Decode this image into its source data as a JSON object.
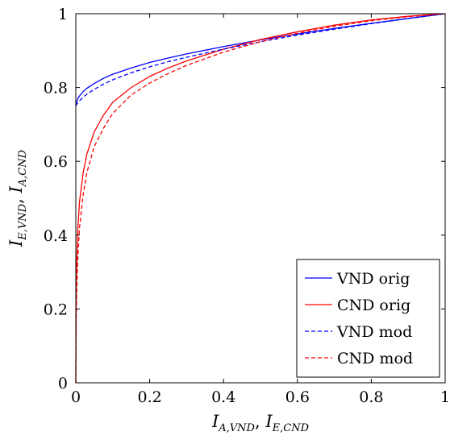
{
  "chart_data": {
    "type": "line",
    "xlabel": {
      "base": "I",
      "sub1": "A,VND",
      "sep": ", ",
      "sub2": "E,CND"
    },
    "ylabel": {
      "base": "I",
      "sub1": "E,VND",
      "sep": ", ",
      "sub2": "A,CND"
    },
    "xlim": [
      0,
      1
    ],
    "ylim": [
      0,
      1
    ],
    "x_ticks": [
      "0",
      "0.2",
      "0.4",
      "0.6",
      "0.8",
      "1"
    ],
    "y_ticks": [
      "0",
      "0.2",
      "0.4",
      "0.6",
      "0.8",
      "1"
    ],
    "grid": false,
    "legend_position": "bottom-right",
    "x": [
      0,
      0.001,
      0.002,
      0.005,
      0.01,
      0.02,
      0.03,
      0.05,
      0.075,
      0.1,
      0.15,
      0.2,
      0.25,
      0.3,
      0.4,
      0.5,
      0.6,
      0.7,
      0.8,
      0.9,
      1.0
    ],
    "series": [
      {
        "name": "VND orig",
        "color": "#0000ff",
        "dash": "solid",
        "values": [
          0.75,
          0.757,
          0.761,
          0.769,
          0.777,
          0.789,
          0.798,
          0.811,
          0.825,
          0.836,
          0.853,
          0.868,
          0.88,
          0.891,
          0.911,
          0.929,
          0.945,
          0.96,
          0.974,
          0.987,
          1.0
        ]
      },
      {
        "name": "CND orig",
        "color": "#ff0000",
        "dash": "solid",
        "values": [
          0,
          0.24,
          0.31,
          0.41,
          0.49,
          0.57,
          0.62,
          0.68,
          0.725,
          0.76,
          0.8,
          0.83,
          0.853,
          0.872,
          0.904,
          0.93,
          0.951,
          0.969,
          0.983,
          0.993,
          1.0
        ]
      },
      {
        "name": "VND mod",
        "color": "#0000ff",
        "dash": "dashed",
        "values": [
          0.75,
          0.752,
          0.754,
          0.758,
          0.764,
          0.774,
          0.782,
          0.795,
          0.809,
          0.821,
          0.84,
          0.856,
          0.87,
          0.882,
          0.904,
          0.924,
          0.942,
          0.958,
          0.973,
          0.987,
          1.0
        ]
      },
      {
        "name": "CND mod",
        "color": "#ff0000",
        "dash": "dashed",
        "values": [
          0,
          0.17,
          0.23,
          0.33,
          0.42,
          0.51,
          0.57,
          0.64,
          0.69,
          0.73,
          0.78,
          0.812,
          0.838,
          0.86,
          0.896,
          0.924,
          0.947,
          0.966,
          0.981,
          0.992,
          1.0
        ]
      }
    ]
  }
}
